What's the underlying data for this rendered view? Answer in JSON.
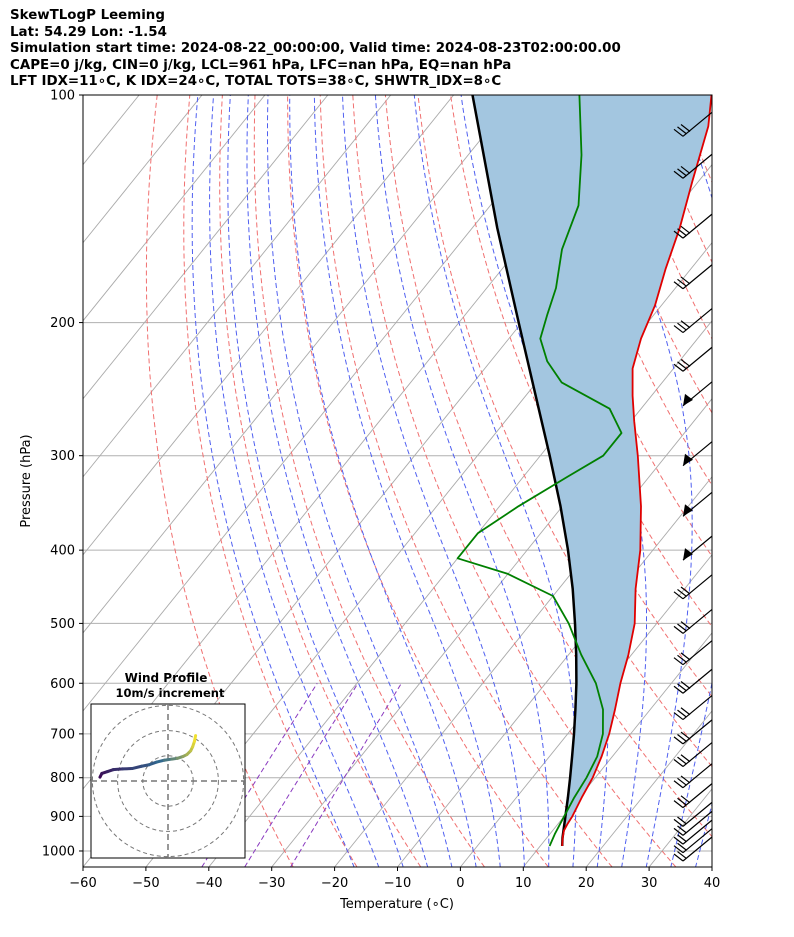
{
  "header": {
    "title": "SkewTLogP Leeming",
    "location": "Lat: 54.29   Lon: -1.54",
    "times": "Simulation start time: 2024-08-22_00:00:00, Valid time: 2024-08-23T02:00:00.00",
    "parcel": "CAPE=0 j/kg, CIN=0 j/kg, LCL=961 hPa, LFC=nan hPa, EQ=nan hPa",
    "indices": "LFT IDX=11∘C, K IDX=24∘C, TOTAL TOTS=38∘C, SHWTR_IDX=8∘C"
  },
  "colors": {
    "temperature": "#e00000",
    "dewpoint": "#008000",
    "parcel": "#000000",
    "fill": "#a3c6e0",
    "isotherm": "#aaaaaa",
    "dry_adiabat": "#f07070",
    "moist_adiabat": "#5060f0",
    "mixing_ratio": "#8a3ac0",
    "hodograph_start": "#3b0a55",
    "hodograph_end": "#f0e030"
  },
  "chart_data": {
    "type": "line",
    "skew": "skew-T log-p",
    "xlabel": "Temperature (∘C)",
    "ylabel": "Pressure (hPa)",
    "xlim": [
      -60,
      40
    ],
    "ylim": [
      1050,
      100
    ],
    "y_scale": "log",
    "x_ticks": [
      -60,
      -50,
      -40,
      -30,
      -20,
      -10,
      0,
      10,
      20,
      30,
      40
    ],
    "x_tick_labels": [
      "−60",
      "−50",
      "−40",
      "−30",
      "−20",
      "−10",
      "0",
      "10",
      "20",
      "30",
      "40"
    ],
    "y_ticks": [
      1000,
      900,
      800,
      700,
      600,
      500,
      400,
      300,
      200,
      100
    ],
    "y_tick_labels": [
      "1000",
      "900",
      "800",
      "700",
      "600",
      "500",
      "400",
      "300",
      "200",
      "100"
    ],
    "grid": true,
    "series": [
      {
        "name": "",
        "role": "temperature",
        "pressure": [
          985,
          960,
          940,
          920,
          900,
          850,
          800,
          750,
          700,
          650,
          600,
          550,
          500,
          450,
          400,
          350,
          300,
          270,
          250,
          230,
          210,
          190,
          170,
          150,
          130,
          110,
          100
        ],
        "value": [
          13.5,
          12.5,
          11.8,
          11.5,
          11.3,
          10.4,
          9.6,
          8.3,
          6.6,
          4.4,
          1.9,
          -0.5,
          -3.5,
          -7.8,
          -12,
          -17.5,
          -24.5,
          -29.5,
          -33,
          -36.5,
          -39,
          -41,
          -44,
          -47,
          -51,
          -55.5,
          -59
        ]
      },
      {
        "name": "",
        "role": "dewpoint",
        "pressure": [
          985,
          950,
          900,
          850,
          800,
          750,
          700,
          650,
          600,
          550,
          500,
          460,
          430,
          410,
          380,
          350,
          320,
          300,
          280,
          260,
          240,
          225,
          210,
          195,
          180,
          160,
          140,
          120,
          100
        ],
        "value": [
          11.5,
          10.8,
          10,
          9.2,
          8.6,
          7.6,
          5.6,
          2.5,
          -2,
          -8,
          -14,
          -20,
          -30,
          -40,
          -40,
          -37,
          -33,
          -30,
          -30,
          -35,
          -46,
          -51,
          -55,
          -57,
          -59,
          -63,
          -66,
          -72,
          -80
        ]
      },
      {
        "name": "",
        "role": "parcel",
        "pressure": [
          985,
          961,
          900,
          850,
          800,
          750,
          700,
          650,
          600,
          550,
          500,
          450,
          400,
          350,
          300,
          250,
          200,
          150,
          100
        ],
        "value": [
          13.5,
          12.5,
          10.2,
          8.2,
          6,
          3.6,
          1,
          -1.9,
          -5.1,
          -8.8,
          -13,
          -17.8,
          -23.5,
          -30.3,
          -38.5,
          -48.4,
          -60.5,
          -76,
          -97
        ]
      }
    ],
    "wind_barbs_pressure": [
      1000,
      975,
      950,
      925,
      900,
      850,
      800,
      750,
      700,
      650,
      600,
      550,
      500,
      450,
      400,
      350,
      300,
      250,
      225,
      200,
      175,
      150,
      125,
      110
    ],
    "hodograph": {
      "title": "Wind Profile",
      "subtitle": "10m/s increment",
      "u": [
        -18,
        -17.5,
        -16,
        -14.5,
        -12,
        -9.5,
        -7,
        -5,
        -3,
        -1,
        1,
        2.5,
        4,
        5,
        6,
        6.5,
        7,
        7.3
      ],
      "v": [
        1,
        2,
        2.5,
        3,
        3.2,
        3.3,
        3.9,
        4.3,
        5,
        5.5,
        5.8,
        6,
        6.5,
        7,
        8,
        9,
        10.5,
        12
      ]
    }
  }
}
